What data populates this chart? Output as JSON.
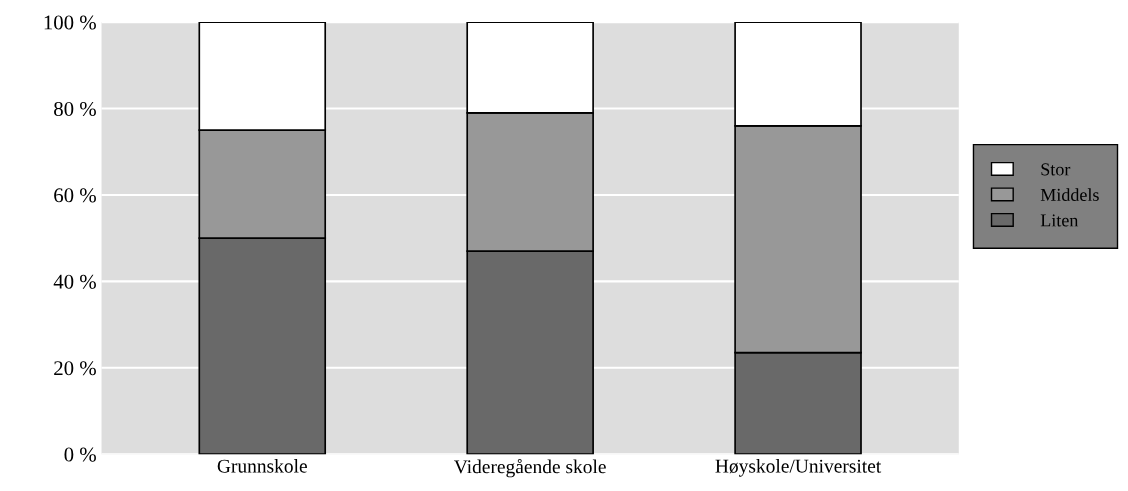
{
  "chart_data": {
    "type": "bar",
    "stacked": true,
    "categories": [
      "Grunnskole",
      "Videregående skole",
      "Høyskole/Universitet"
    ],
    "series": [
      {
        "name": "Liten",
        "color": "#696969",
        "values": [
          50,
          47,
          23.5
        ]
      },
      {
        "name": "Middels",
        "color": "#989898",
        "values": [
          25,
          32,
          52.5
        ]
      },
      {
        "name": "Stor",
        "color": "#ffffff",
        "values": [
          25,
          21,
          24
        ]
      }
    ],
    "ylim": [
      0,
      100
    ],
    "yticks": [
      {
        "value": 0,
        "label": "0 %"
      },
      {
        "value": 20,
        "label": "20 %"
      },
      {
        "value": 40,
        "label": "40 %"
      },
      {
        "value": 60,
        "label": "60 %"
      },
      {
        "value": 80,
        "label": "80 %"
      },
      {
        "value": 100,
        "label": "100 %"
      }
    ],
    "grid": "y",
    "legend": "right"
  }
}
